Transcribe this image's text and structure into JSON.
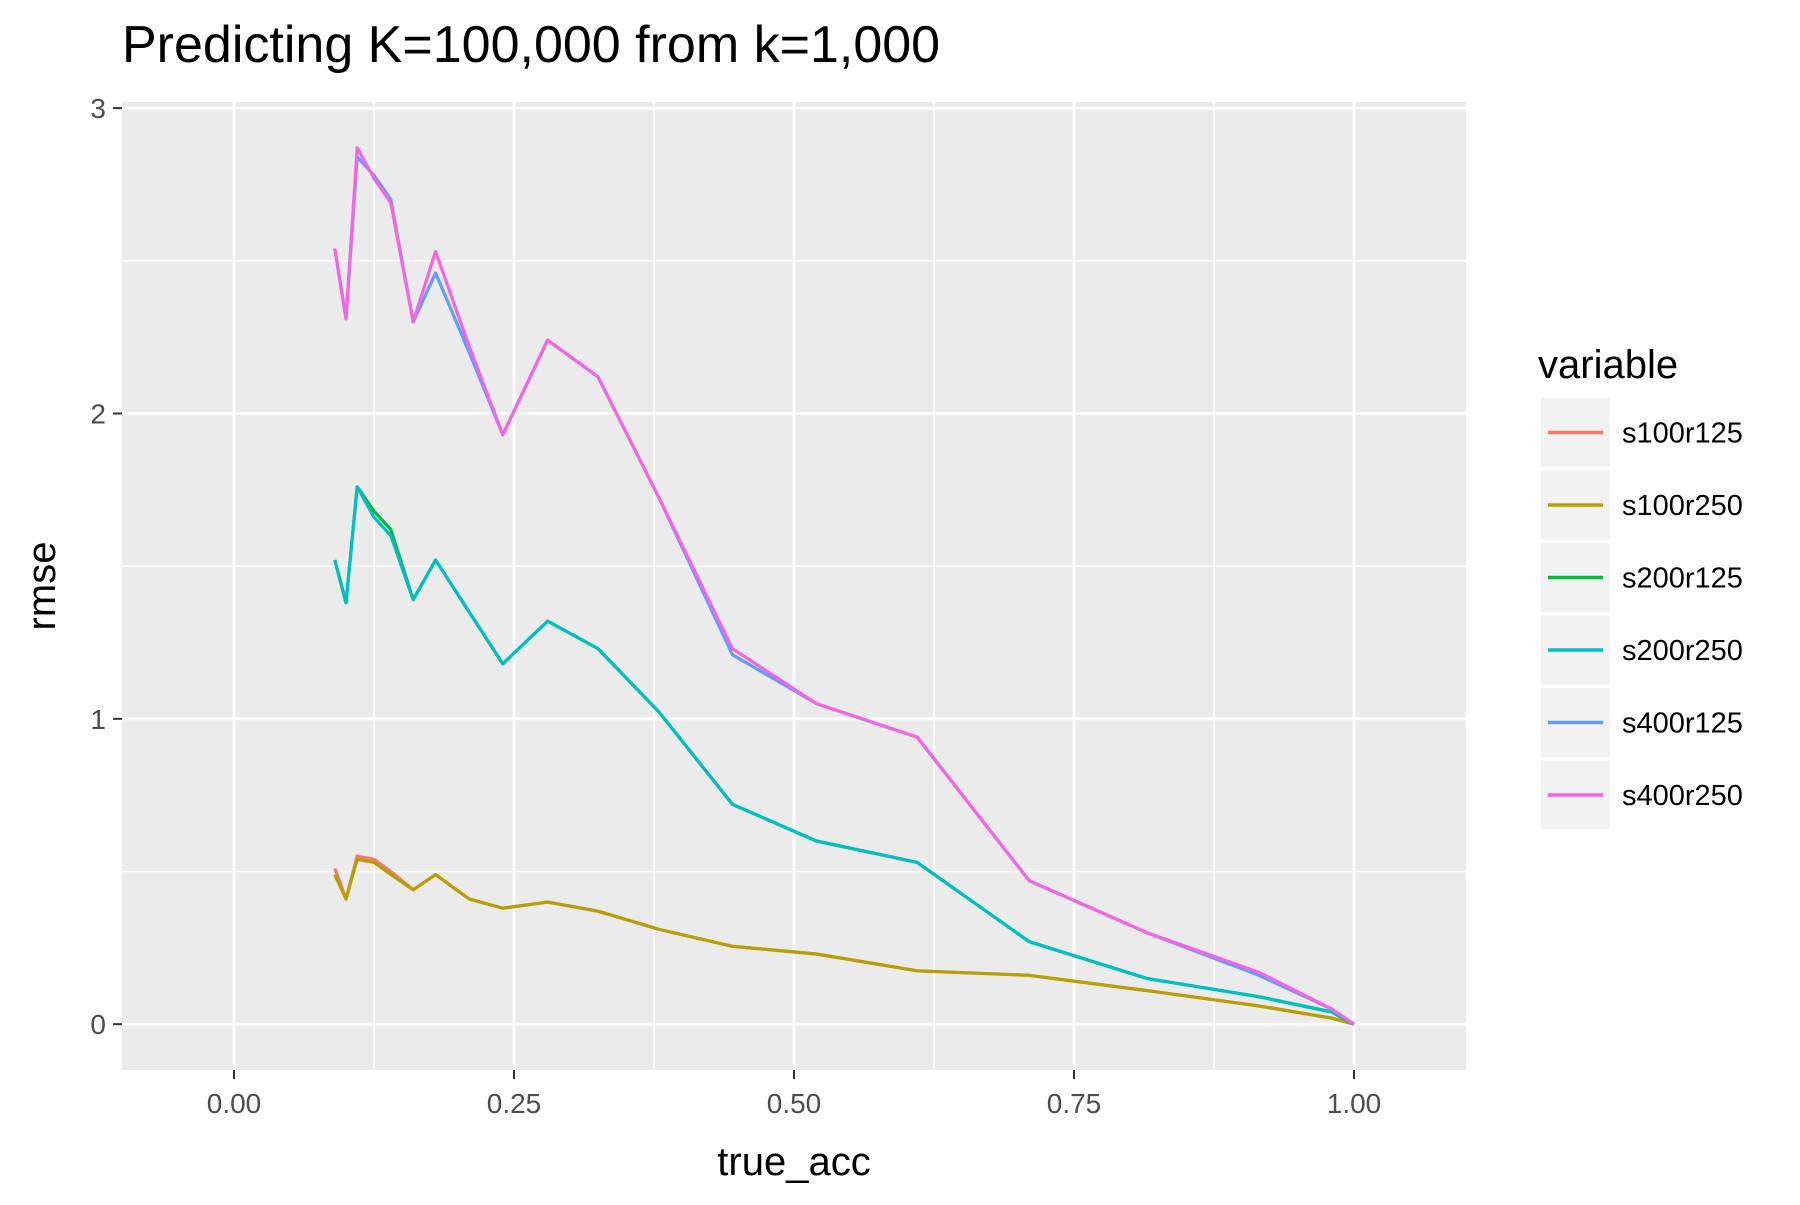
{
  "chart_data": {
    "type": "line",
    "title": "Predicting K=100,000 from k=1,000",
    "xlabel": "true_acc",
    "ylabel": "rmse",
    "xlim": [
      -0.1,
      1.1
    ],
    "ylim": [
      -0.15,
      3.02
    ],
    "x_ticks": [
      {
        "value": 0.0,
        "label": "0.00"
      },
      {
        "value": 0.25,
        "label": "0.25"
      },
      {
        "value": 0.5,
        "label": "0.50"
      },
      {
        "value": 0.75,
        "label": "0.75"
      },
      {
        "value": 1.0,
        "label": "1.00"
      }
    ],
    "y_ticks": [
      {
        "value": 0,
        "label": "0"
      },
      {
        "value": 1,
        "label": "1"
      },
      {
        "value": 2,
        "label": "2"
      },
      {
        "value": 3,
        "label": "3"
      }
    ],
    "grid": true,
    "legend": {
      "title": "variable",
      "position": "right"
    },
    "x": [
      0.09,
      0.1,
      0.11,
      0.125,
      0.14,
      0.16,
      0.18,
      0.21,
      0.24,
      0.28,
      0.325,
      0.38,
      0.445,
      0.52,
      0.61,
      0.71,
      0.815,
      0.915,
      0.98,
      1.0
    ],
    "series": [
      {
        "name": "s100r125",
        "color": "#F8766D",
        "values": [
          0.51,
          0.41,
          0.55,
          0.54,
          0.5,
          0.44,
          0.49,
          0.41,
          0.38,
          0.4,
          0.37,
          0.31,
          0.255,
          0.23,
          0.175,
          0.16,
          0.11,
          0.06,
          0.02,
          0.0
        ]
      },
      {
        "name": "s100r250",
        "color": "#B79F00",
        "values": [
          0.49,
          0.41,
          0.54,
          0.53,
          0.49,
          0.44,
          0.49,
          0.41,
          0.38,
          0.4,
          0.37,
          0.31,
          0.255,
          0.23,
          0.175,
          0.16,
          0.11,
          0.06,
          0.02,
          0.0
        ]
      },
      {
        "name": "s200r125",
        "color": "#00BA38",
        "values": [
          1.52,
          1.38,
          1.76,
          1.68,
          1.62,
          1.39,
          1.52,
          1.35,
          1.18,
          1.32,
          1.23,
          1.02,
          0.72,
          0.6,
          0.53,
          0.27,
          0.15,
          0.09,
          0.04,
          0.0
        ]
      },
      {
        "name": "s200r250",
        "color": "#00BFC4",
        "values": [
          1.52,
          1.38,
          1.76,
          1.66,
          1.6,
          1.39,
          1.52,
          1.35,
          1.18,
          1.32,
          1.23,
          1.02,
          0.72,
          0.6,
          0.53,
          0.27,
          0.15,
          0.09,
          0.04,
          0.0
        ]
      },
      {
        "name": "s400r125",
        "color": "#619CFF",
        "values": [
          2.54,
          2.31,
          2.84,
          2.78,
          2.7,
          2.3,
          2.46,
          2.2,
          1.93,
          2.24,
          2.12,
          1.72,
          1.21,
          1.05,
          0.94,
          0.47,
          0.3,
          0.16,
          0.05,
          0.0
        ]
      },
      {
        "name": "s400r250",
        "color": "#F564E3",
        "values": [
          2.54,
          2.31,
          2.87,
          2.77,
          2.69,
          2.3,
          2.53,
          2.22,
          1.93,
          2.24,
          2.12,
          1.72,
          1.23,
          1.05,
          0.94,
          0.47,
          0.3,
          0.17,
          0.05,
          0.0
        ]
      }
    ]
  }
}
